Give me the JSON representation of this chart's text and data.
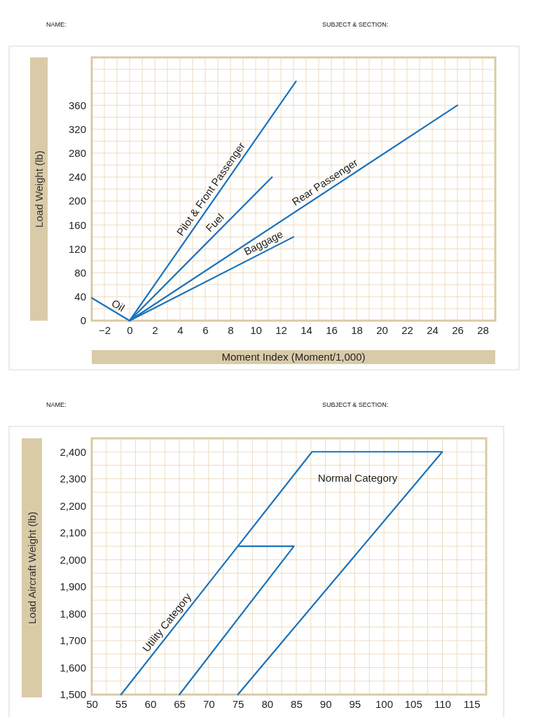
{
  "chart_data": [
    {
      "type": "line",
      "xlabel": "Moment Index (Moment/1,000)",
      "ylabel": "Load Weight (lb)",
      "annotations": [
        "NAME:",
        "SUBJECT & SECTION:"
      ],
      "xlim": [
        -3,
        29
      ],
      "ylim": [
        0,
        440
      ],
      "xticks": [
        {
          "value": -3,
          "label": null
        },
        {
          "value": -2,
          "label": "−2"
        },
        {
          "value": -1,
          "label": null
        },
        0,
        {
          "value": 1,
          "label": null
        },
        2,
        {
          "value": 3,
          "label": null
        },
        4,
        {
          "value": 5,
          "label": null
        },
        6,
        {
          "value": 7,
          "label": null
        },
        8,
        {
          "value": 9,
          "label": null
        },
        10,
        {
          "value": 11,
          "label": null
        },
        12,
        {
          "value": 13,
          "label": null
        },
        14,
        {
          "value": 15,
          "label": null
        },
        16,
        {
          "value": 17,
          "label": null
        },
        18,
        {
          "value": 19,
          "label": null
        },
        20,
        {
          "value": 21,
          "label": null
        },
        22,
        {
          "value": 23,
          "label": null
        },
        24,
        {
          "value": 25,
          "label": null
        },
        26,
        {
          "value": 27,
          "label": null
        },
        28,
        {
          "value": 29,
          "label": null
        }
      ],
      "yticks": [
        0,
        {
          "value": 20,
          "label": null
        },
        40,
        {
          "value": 60,
          "label": null
        },
        80,
        {
          "value": 100,
          "label": null
        },
        120,
        {
          "value": 140,
          "label": null
        },
        160,
        {
          "value": 180,
          "label": null
        },
        200,
        {
          "value": 220,
          "label": null
        },
        240,
        {
          "value": 260,
          "label": null
        },
        280,
        {
          "value": 300,
          "label": null
        },
        320,
        {
          "value": 340,
          "label": null
        },
        360,
        {
          "value": 380,
          "label": null
        },
        {
          "value": 400,
          "label": null
        },
        {
          "value": 420,
          "label": null
        },
        {
          "value": 440,
          "label": null
        }
      ],
      "grid": true,
      "line_style": "solid",
      "series": [
        {
          "name": "Oil",
          "color": "#1a72bd",
          "x": [
            -3,
            0
          ],
          "values": [
            38,
            0
          ]
        },
        {
          "name": "Pilot & Front Passenger",
          "color": "#1a72bd",
          "x": [
            0,
            13.2
          ],
          "values": [
            0,
            400
          ]
        },
        {
          "name": "Fuel",
          "color": "#1a72bd",
          "x": [
            0,
            11.3
          ],
          "values": [
            0,
            240
          ]
        },
        {
          "name": "Rear Passenger",
          "color": "#1a72bd",
          "x": [
            0,
            26
          ],
          "values": [
            0,
            360
          ]
        },
        {
          "name": "Baggage",
          "color": "#1a72bd",
          "x": [
            0,
            13
          ],
          "values": [
            0,
            140
          ]
        }
      ]
    },
    {
      "type": "line",
      "ylabel": "Load Aircraft Weight (lb)",
      "annotations": [
        "NAME:",
        "SUBJECT & SECTION:"
      ],
      "xlim": [
        50,
        117.5
      ],
      "ylim": [
        1500,
        2450
      ],
      "xticks": [
        50,
        {
          "value": 52.5,
          "label": null
        },
        55,
        {
          "value": 57.5,
          "label": null
        },
        60,
        {
          "value": 62.5,
          "label": null
        },
        65,
        {
          "value": 67.5,
          "label": null
        },
        70,
        {
          "value": 72.5,
          "label": null
        },
        75,
        {
          "value": 77.5,
          "label": null
        },
        80,
        {
          "value": 82.5,
          "label": null
        },
        85,
        {
          "value": 87.5,
          "label": null
        },
        90,
        {
          "value": 92.5,
          "label": null
        },
        95,
        {
          "value": 97.5,
          "label": null
        },
        100,
        {
          "value": 102.5,
          "label": null
        },
        105,
        {
          "value": 107.5,
          "label": null
        },
        110,
        {
          "value": 112.5,
          "label": null
        },
        115,
        {
          "value": 117.5,
          "label": null
        }
      ],
      "yticks": [
        {
          "value": 1500,
          "label": "1,500"
        },
        {
          "value": 1550,
          "label": null
        },
        {
          "value": 1600,
          "label": "1,600"
        },
        {
          "value": 1650,
          "label": null
        },
        {
          "value": 1700,
          "label": "1,700"
        },
        {
          "value": 1750,
          "label": null
        },
        {
          "value": 1800,
          "label": "1,800"
        },
        {
          "value": 1850,
          "label": null
        },
        {
          "value": 1900,
          "label": "1,900"
        },
        {
          "value": 1950,
          "label": null
        },
        {
          "value": 2000,
          "label": "2,000"
        },
        {
          "value": 2050,
          "label": null
        },
        {
          "value": 2100,
          "label": "2,100"
        },
        {
          "value": 2150,
          "label": null
        },
        {
          "value": 2200,
          "label": "2,200"
        },
        {
          "value": 2250,
          "label": null
        },
        {
          "value": 2300,
          "label": "2,300"
        },
        {
          "value": 2350,
          "label": null
        },
        {
          "value": 2400,
          "label": "2,400"
        },
        {
          "value": 2450,
          "label": null
        }
      ],
      "grid": true,
      "line_style": "solid",
      "series": [
        {
          "name": "Utility Category",
          "color": "#1a72bd",
          "x": [
            55,
            75,
            84.6,
            65
          ],
          "values": [
            1500,
            2050,
            2050,
            1500
          ]
        },
        {
          "name": "Normal Category",
          "color": "#1a72bd",
          "x": [
            75,
            87.7,
            110,
            75
          ],
          "values": [
            2050,
            2400,
            2400,
            1500
          ]
        }
      ]
    }
  ]
}
